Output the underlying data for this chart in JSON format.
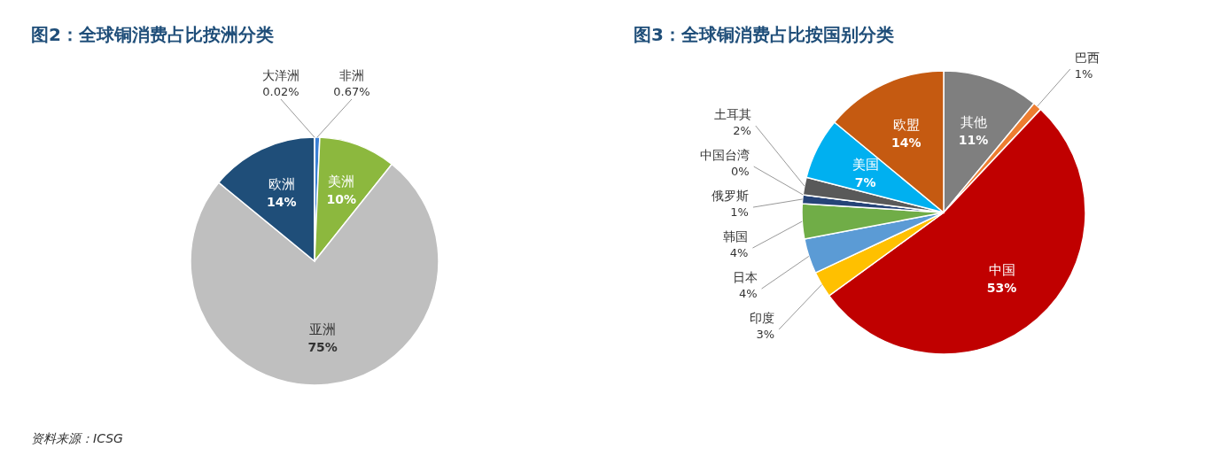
{
  "chart_data": [
    {
      "type": "pie",
      "title": "图2：全球铜消费占比按洲分类",
      "categories": [
        "非洲",
        "美洲",
        "亚洲",
        "欧洲",
        "大洋洲"
      ],
      "values": [
        0.67,
        10,
        75,
        14,
        0.02
      ],
      "value_labels": [
        "0.67%",
        "10%",
        "75%",
        "14%",
        "0.02%"
      ],
      "colors": [
        "#3a7fd5",
        "#8cb83e",
        "#bfbfbf",
        "#1f4e79",
        "#5b9bd5"
      ],
      "annotations": [
        "资料来源：ICSG"
      ]
    },
    {
      "type": "pie",
      "title": "图3：全球铜消费占比按国别分类",
      "categories": [
        "其他",
        "巴西",
        "中国",
        "印度",
        "日本",
        "韩国",
        "俄罗斯",
        "中国台湾",
        "土耳其",
        "美国",
        "欧盟"
      ],
      "values": [
        11,
        1,
        53,
        3,
        4,
        4,
        1,
        0,
        2,
        7,
        14
      ],
      "value_labels": [
        "11%",
        "1%",
        "53%",
        "3%",
        "4%",
        "4%",
        "1%",
        "0%",
        "2%",
        "7%",
        "14%"
      ],
      "colors": [
        "#7f7f7f",
        "#ed7d31",
        "#c00000",
        "#ffc000",
        "#5b9bd5",
        "#70ad47",
        "#264478",
        "#9e480e",
        "#595959",
        "#00b0f0",
        "#c55a11"
      ]
    }
  ]
}
